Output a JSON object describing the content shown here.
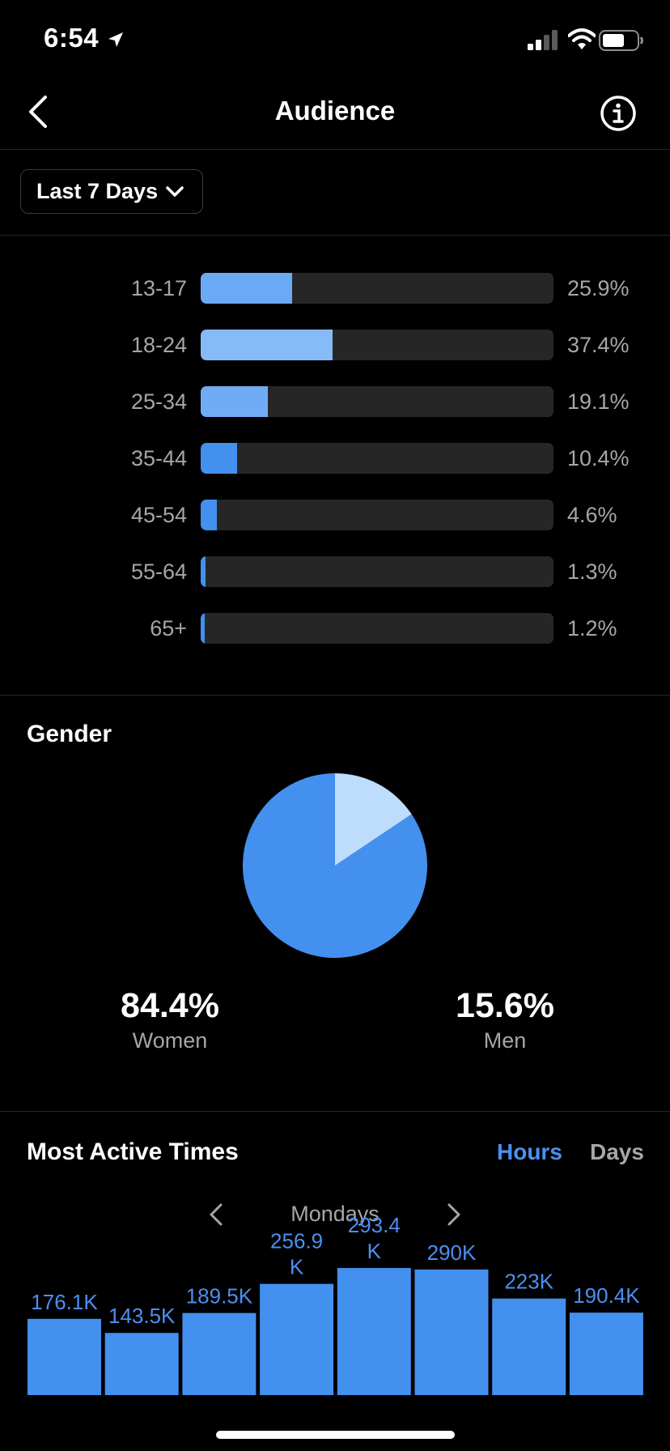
{
  "status_bar": {
    "time": "6:54"
  },
  "nav": {
    "title": "Audience"
  },
  "filter": {
    "range_label": "Last 7 Days"
  },
  "age_ranges": [
    {
      "label": "13-17",
      "percent_text": "25.9%",
      "value": 25.9,
      "color": "#6aaaf5"
    },
    {
      "label": "18-24",
      "percent_text": "37.4%",
      "value": 37.4,
      "color": "#86bbf8"
    },
    {
      "label": "25-34",
      "percent_text": "19.1%",
      "value": 19.1,
      "color": "#70acf5"
    },
    {
      "label": "35-44",
      "percent_text": "10.4%",
      "value": 10.4,
      "color": "#4390ee"
    },
    {
      "label": "45-54",
      "percent_text": "4.6%",
      "value": 4.6,
      "color": "#4390ee"
    },
    {
      "label": "55-64",
      "percent_text": "1.3%",
      "value": 1.3,
      "color": "#4390ee"
    },
    {
      "label": "65+",
      "percent_text": "1.2%",
      "value": 1.2,
      "color": "#4390ee"
    }
  ],
  "gender": {
    "heading": "Gender",
    "women": {
      "value_text": "84.4%",
      "label": "Women",
      "value": 84.4,
      "color": "#4390ee"
    },
    "men": {
      "value_text": "15.6%",
      "label": "Men",
      "value": 15.6,
      "color": "#bedcfc"
    }
  },
  "active_times": {
    "heading": "Most Active Times",
    "tabs": {
      "hours": "Hours",
      "days": "Days"
    },
    "selected_tab": "Hours",
    "day": "Mondays",
    "accent": "#4c8ff0"
  },
  "chart_data": {
    "type": "bar",
    "categories": [
      "",
      "",
      "",
      "",
      "",
      "",
      "",
      ""
    ],
    "values": [
      176.1,
      143.5,
      189.5,
      256.9,
      293.4,
      290,
      223,
      190.4
    ],
    "value_labels": [
      [
        "176.1K"
      ],
      [
        "143.5K"
      ],
      [
        "189.5K"
      ],
      [
        "256.9",
        "K"
      ],
      [
        "293.4",
        "K"
      ],
      [
        "290K"
      ],
      [
        "223K"
      ],
      [
        "190.4K"
      ]
    ],
    "bar_color": "#4390ee",
    "label_color": "#4c8ff0"
  }
}
